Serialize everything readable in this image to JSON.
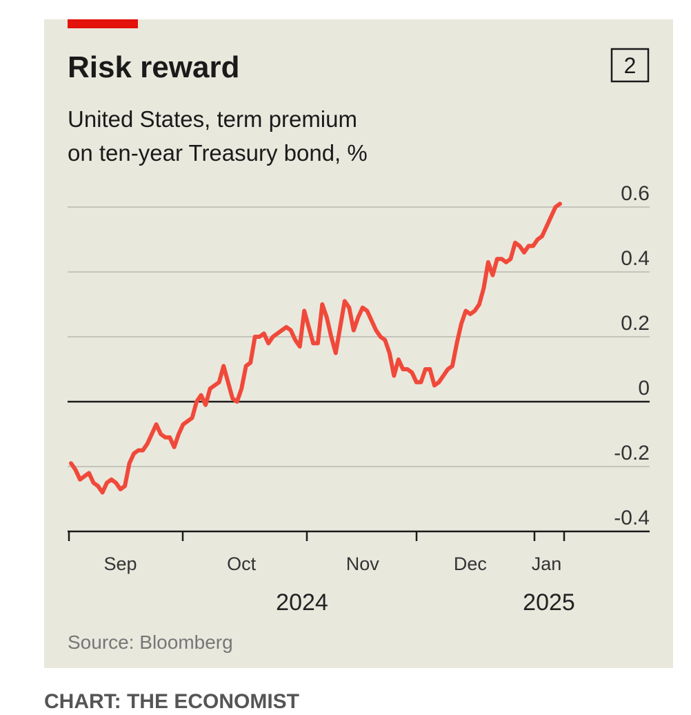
{
  "chart_data": {
    "type": "line",
    "badge": "2",
    "title": "Risk reward",
    "subtitle": [
      "United States, term premium",
      "on ten-year Treasury bond, %"
    ],
    "source": "Source: Bloomberg",
    "caption": "CHART: THE ECONOMIST",
    "color": "#f0493a",
    "categories": [
      null,
      null,
      null,
      null,
      null,
      null,
      null,
      null,
      null,
      null,
      null,
      "Sep",
      null,
      null,
      null,
      null,
      null,
      null,
      null,
      null,
      null,
      null,
      null,
      null,
      null,
      null,
      null,
      null,
      null,
      null,
      null,
      null,
      null,
      null,
      null,
      null,
      null,
      null,
      "Oct",
      null,
      null,
      null,
      null,
      null,
      null,
      null,
      null,
      null,
      null,
      null,
      null,
      null,
      null,
      null,
      null,
      null,
      null,
      null,
      null,
      null,
      null,
      null,
      null,
      null,
      null,
      "Nov",
      null,
      null,
      null,
      null,
      null,
      null,
      null,
      null,
      null,
      null,
      null,
      null,
      null,
      null,
      null,
      null,
      null,
      null,
      null,
      null,
      null,
      null,
      null,
      "Dec",
      null,
      null,
      null,
      null,
      null,
      null,
      null,
      null,
      null,
      null,
      null,
      null,
      null,
      null,
      null,
      null,
      "Jan",
      null,
      null,
      null
    ],
    "x_year_labels": [
      "2024",
      "2025"
    ],
    "values": [
      -0.19,
      -0.21,
      -0.24,
      -0.23,
      -0.22,
      -0.25,
      -0.26,
      -0.28,
      -0.25,
      -0.24,
      -0.25,
      -0.27,
      -0.26,
      -0.19,
      -0.16,
      -0.15,
      -0.15,
      -0.13,
      -0.1,
      -0.07,
      -0.1,
      -0.11,
      -0.11,
      -0.14,
      -0.1,
      -0.07,
      -0.06,
      -0.05,
      0.0,
      0.02,
      -0.01,
      0.04,
      0.05,
      0.06,
      0.11,
      0.06,
      0.01,
      0.0,
      0.04,
      0.11,
      0.12,
      0.2,
      0.2,
      0.21,
      0.18,
      0.2,
      0.21,
      0.22,
      0.23,
      0.22,
      0.19,
      0.17,
      0.28,
      0.23,
      0.18,
      0.18,
      0.3,
      0.26,
      0.2,
      0.15,
      0.23,
      0.31,
      0.29,
      0.22,
      0.26,
      0.29,
      0.28,
      0.25,
      0.22,
      0.2,
      0.19,
      0.15,
      0.08,
      0.13,
      0.1,
      0.1,
      0.09,
      0.06,
      0.06,
      0.1,
      0.1,
      0.05,
      0.06,
      0.08,
      0.1,
      0.11,
      0.18,
      0.24,
      0.28,
      0.27,
      0.28,
      0.3,
      0.35,
      0.43,
      0.39,
      0.44,
      0.44,
      0.43,
      0.44,
      0.49,
      0.48,
      0.46,
      0.48,
      0.48,
      0.5,
      0.51,
      0.54,
      0.57,
      0.6,
      0.61
    ],
    "ylim": [
      -0.4,
      0.6
    ],
    "yticks": [
      -0.4,
      -0.2,
      0,
      0.2,
      0.4,
      0.6
    ],
    "grid": true
  }
}
